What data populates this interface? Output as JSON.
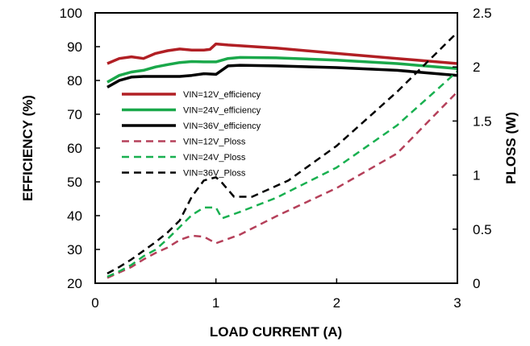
{
  "chart_data": {
    "type": "line",
    "xlabel": "LOAD CURRENT  (A)",
    "ylabel": "EFFICIENCY  (%)",
    "y2label": "PLOSS (W)",
    "xlim": [
      0,
      3
    ],
    "ylim": [
      20,
      100
    ],
    "y2lim": [
      0,
      2.5
    ],
    "x_ticks": [
      "0",
      "1",
      "2",
      "3"
    ],
    "y_ticks": [
      "20",
      "30",
      "40",
      "50",
      "60",
      "70",
      "80",
      "90",
      "100"
    ],
    "y2_ticks": [
      "0",
      "0.5",
      "1",
      "1.5",
      "2",
      "2.5"
    ],
    "grid": false,
    "legend_position": "left",
    "series": [
      {
        "name": "VIN=12V_efficiency",
        "axis": "left",
        "color": "#b11f24",
        "dash": false,
        "x": [
          0.1,
          0.2,
          0.3,
          0.4,
          0.5,
          0.6,
          0.7,
          0.8,
          0.9,
          0.95,
          1.0,
          1.1,
          1.5,
          2.0,
          2.5,
          3.0
        ],
        "y": [
          85,
          86.5,
          87,
          86.5,
          88,
          88.8,
          89.3,
          89,
          89,
          89.2,
          90.8,
          90.5,
          89.6,
          88,
          86.5,
          85
        ]
      },
      {
        "name": "VIN=24V_efficiency",
        "axis": "left",
        "color": "#1aa84a",
        "dash": false,
        "x": [
          0.1,
          0.2,
          0.3,
          0.4,
          0.5,
          0.6,
          0.7,
          0.8,
          0.9,
          1.0,
          1.1,
          1.2,
          1.5,
          2.0,
          2.5,
          3.0
        ],
        "y": [
          79.5,
          81.5,
          82.5,
          83,
          84,
          84.7,
          85.3,
          85.6,
          85.5,
          85.5,
          86.5,
          86.8,
          86.7,
          86,
          85,
          83.5
        ]
      },
      {
        "name": "VIN=36V_efficiency",
        "axis": "left",
        "color": "#000000",
        "dash": false,
        "x": [
          0.1,
          0.2,
          0.3,
          0.4,
          0.5,
          0.6,
          0.7,
          0.8,
          0.9,
          1.0,
          1.1,
          1.2,
          1.5,
          2.0,
          2.5,
          3.0
        ],
        "y": [
          78,
          80,
          81,
          81.2,
          81.2,
          81.2,
          81.2,
          81.5,
          82,
          81.8,
          84.3,
          84.5,
          84.3,
          83.8,
          83,
          81.5
        ]
      },
      {
        "name": "VIN=12V_Ploss",
        "axis": "right",
        "color": "#b5405a",
        "dash": true,
        "x": [
          0.1,
          0.2,
          0.3,
          0.4,
          0.5,
          0.6,
          0.7,
          0.8,
          0.9,
          1.0,
          1.2,
          1.5,
          2.0,
          2.5,
          3.0
        ],
        "y": [
          0.05,
          0.1,
          0.15,
          0.22,
          0.28,
          0.33,
          0.4,
          0.44,
          0.43,
          0.37,
          0.45,
          0.62,
          0.88,
          1.2,
          1.77
        ]
      },
      {
        "name": "VIN=24V_Ploss",
        "axis": "right",
        "color": "#19b050",
        "dash": true,
        "x": [
          0.1,
          0.2,
          0.3,
          0.4,
          0.5,
          0.6,
          0.7,
          0.8,
          0.9,
          1.0,
          1.05,
          1.2,
          1.5,
          2.0,
          2.5,
          3.0
        ],
        "y": [
          0.06,
          0.11,
          0.17,
          0.25,
          0.31,
          0.41,
          0.52,
          0.63,
          0.7,
          0.7,
          0.6,
          0.66,
          0.79,
          1.07,
          1.46,
          1.96
        ]
      },
      {
        "name": "VIN=36V_Ploss",
        "axis": "right",
        "color": "#000000",
        "dash": true,
        "x": [
          0.1,
          0.2,
          0.3,
          0.4,
          0.5,
          0.6,
          0.7,
          0.8,
          0.9,
          1.0,
          1.05,
          1.15,
          1.3,
          1.6,
          2.0,
          2.5,
          3.0
        ],
        "y": [
          0.09,
          0.15,
          0.22,
          0.3,
          0.38,
          0.47,
          0.58,
          0.8,
          0.95,
          0.98,
          0.93,
          0.8,
          0.8,
          0.95,
          1.27,
          1.77,
          2.32
        ]
      }
    ]
  }
}
